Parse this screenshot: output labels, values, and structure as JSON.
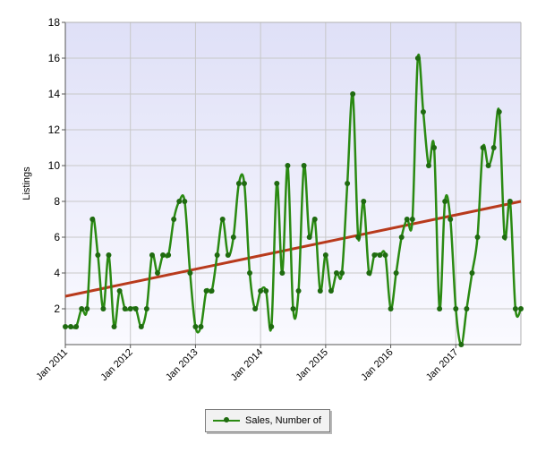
{
  "chart_data": {
    "type": "line",
    "title": "",
    "xlabel": "",
    "ylabel": "Listings",
    "ylim": [
      0,
      18
    ],
    "yticks": [
      "2",
      "4",
      "6",
      "8",
      "10",
      "12",
      "14",
      "16",
      "18"
    ],
    "x_tick_labels": [
      "Jan 2011",
      "Jan 2012",
      "Jan 2013",
      "Jan 2014",
      "Jan 2015",
      "Jan 2016",
      "Jan 2017"
    ],
    "grid": true,
    "legend": "bottom",
    "series": [
      {
        "name": "Sales, Number of",
        "color": "#2a8a12",
        "values": [
          1,
          1,
          1,
          2,
          2,
          7,
          5,
          2,
          5,
          1,
          3,
          2,
          2,
          2,
          1,
          2,
          5,
          4,
          5,
          5,
          7,
          8,
          8,
          4,
          1,
          1,
          3,
          3,
          5,
          7,
          5,
          6,
          9,
          9,
          4,
          2,
          3,
          3,
          1,
          9,
          4,
          10,
          2,
          3,
          10,
          6,
          7,
          3,
          5,
          3,
          4,
          4,
          9,
          14,
          6,
          8,
          4,
          5,
          5,
          5,
          2,
          4,
          6,
          7,
          7,
          16,
          13,
          10,
          11,
          2,
          8,
          7,
          2,
          0,
          2,
          4,
          6,
          11,
          10,
          11,
          13,
          6,
          8,
          2,
          2
        ]
      }
    ],
    "trendline": {
      "color": "#b83a1c",
      "start": 2.7,
      "end": 8.0
    }
  }
}
